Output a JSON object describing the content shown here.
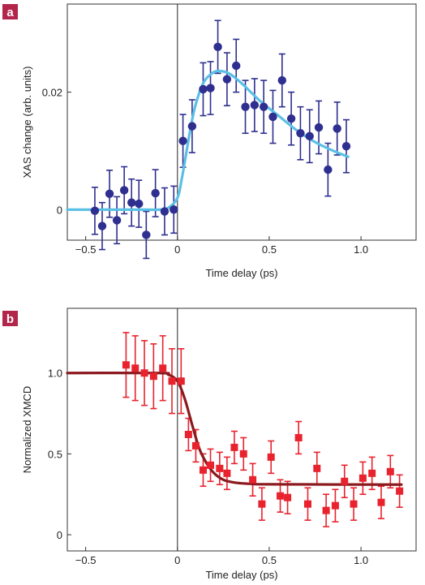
{
  "chart_data": [
    {
      "panel_label": "a",
      "type": "scatter",
      "xlabel": "Time delay (ps)",
      "ylabel": "XAS change (arb. units)",
      "xlim": [
        -0.6,
        1.3
      ],
      "ylim": [
        -0.0052,
        0.035
      ],
      "xticks": [
        -0.5,
        0,
        0.5,
        1.0
      ],
      "xtick_labels": [
        "−0.5",
        "0",
        "0.5",
        "1.0"
      ],
      "yticks": [
        0,
        0.02
      ],
      "ytick_labels": [
        "0",
        "0.02"
      ],
      "colors": {
        "points": "#2e2f8f",
        "fit": "#5bc0e6",
        "panel_badge": "#b3254a"
      },
      "series": [
        {
          "kind": "points",
          "points": [
            {
              "x": -0.45,
              "y": -0.0002,
              "err": 0.004
            },
            {
              "x": -0.41,
              "y": -0.0028,
              "err": 0.004
            },
            {
              "x": -0.37,
              "y": 0.0027,
              "err": 0.004
            },
            {
              "x": -0.33,
              "y": -0.0018,
              "err": 0.004
            },
            {
              "x": -0.29,
              "y": 0.0033,
              "err": 0.004
            },
            {
              "x": -0.25,
              "y": 0.0012,
              "err": 0.004
            },
            {
              "x": -0.21,
              "y": 0.001,
              "err": 0.004
            },
            {
              "x": -0.17,
              "y": -0.0043,
              "err": 0.004
            },
            {
              "x": -0.12,
              "y": 0.0028,
              "err": 0.004
            },
            {
              "x": -0.07,
              "y": -0.0003,
              "err": 0.004
            },
            {
              "x": -0.02,
              "y": 0.0,
              "err": 0.004
            },
            {
              "x": 0.03,
              "y": 0.0117,
              "err": 0.0045
            },
            {
              "x": 0.08,
              "y": 0.0142,
              "err": 0.0045
            },
            {
              "x": 0.14,
              "y": 0.0205,
              "err": 0.0045
            },
            {
              "x": 0.18,
              "y": 0.0207,
              "err": 0.0045
            },
            {
              "x": 0.22,
              "y": 0.0277,
              "err": 0.0045
            },
            {
              "x": 0.27,
              "y": 0.0222,
              "err": 0.0045
            },
            {
              "x": 0.32,
              "y": 0.0245,
              "err": 0.0045
            },
            {
              "x": 0.37,
              "y": 0.0175,
              "err": 0.0045
            },
            {
              "x": 0.42,
              "y": 0.0178,
              "err": 0.0045
            },
            {
              "x": 0.47,
              "y": 0.0175,
              "err": 0.0045
            },
            {
              "x": 0.52,
              "y": 0.0158,
              "err": 0.0045
            },
            {
              "x": 0.57,
              "y": 0.022,
              "err": 0.0045
            },
            {
              "x": 0.62,
              "y": 0.0155,
              "err": 0.0045
            },
            {
              "x": 0.67,
              "y": 0.013,
              "err": 0.0045
            },
            {
              "x": 0.72,
              "y": 0.0125,
              "err": 0.0045
            },
            {
              "x": 0.77,
              "y": 0.014,
              "err": 0.0045
            },
            {
              "x": 0.82,
              "y": 0.0068,
              "err": 0.0045
            },
            {
              "x": 0.87,
              "y": 0.0138,
              "err": 0.0045
            },
            {
              "x": 0.92,
              "y": 0.0108,
              "err": 0.0045
            }
          ]
        },
        {
          "kind": "fit",
          "x": [
            -0.6,
            -0.2,
            -0.1,
            -0.05,
            0.0,
            0.025,
            0.05,
            0.075,
            0.1,
            0.14,
            0.18,
            0.22,
            0.28,
            0.35,
            0.45,
            0.55,
            0.65,
            0.75,
            0.85,
            0.93
          ],
          "y": [
            0.0,
            0.0,
            0.0,
            0.0003,
            0.002,
            0.0055,
            0.01,
            0.0145,
            0.018,
            0.0215,
            0.023,
            0.0236,
            0.0232,
            0.0215,
            0.0185,
            0.016,
            0.0135,
            0.0115,
            0.01,
            0.009
          ]
        }
      ]
    },
    {
      "panel_label": "b",
      "type": "scatter",
      "xlabel": "Time delay (ps)",
      "ylabel": "Normalized XMCD",
      "xlim": [
        -0.6,
        1.3
      ],
      "ylim": [
        -0.1,
        1.4
      ],
      "xticks": [
        -0.5,
        0,
        0.5,
        1.0
      ],
      "xtick_labels": [
        "−0.5",
        "0",
        "0.5",
        "1.0"
      ],
      "yticks": [
        0,
        0.5,
        1.0
      ],
      "ytick_labels": [
        "0",
        "0.5",
        "1.0"
      ],
      "colors": {
        "points": "#e8232e",
        "fit": "#8b1a1f",
        "panel_badge": "#b3254a"
      },
      "series": [
        {
          "kind": "points",
          "points": [
            {
              "x": -0.28,
              "y": 1.05,
              "err": 0.2
            },
            {
              "x": -0.23,
              "y": 1.03,
              "err": 0.2
            },
            {
              "x": -0.18,
              "y": 1.0,
              "err": 0.2
            },
            {
              "x": -0.13,
              "y": 0.98,
              "err": 0.2
            },
            {
              "x": -0.08,
              "y": 1.03,
              "err": 0.2
            },
            {
              "x": -0.03,
              "y": 0.95,
              "err": 0.2
            },
            {
              "x": 0.02,
              "y": 0.95,
              "err": 0.2
            },
            {
              "x": 0.06,
              "y": 0.62,
              "err": 0.1
            },
            {
              "x": 0.1,
              "y": 0.55,
              "err": 0.1
            },
            {
              "x": 0.14,
              "y": 0.4,
              "err": 0.1
            },
            {
              "x": 0.18,
              "y": 0.43,
              "err": 0.1
            },
            {
              "x": 0.23,
              "y": 0.41,
              "err": 0.1
            },
            {
              "x": 0.27,
              "y": 0.38,
              "err": 0.1
            },
            {
              "x": 0.31,
              "y": 0.54,
              "err": 0.1
            },
            {
              "x": 0.36,
              "y": 0.5,
              "err": 0.1
            },
            {
              "x": 0.41,
              "y": 0.34,
              "err": 0.1
            },
            {
              "x": 0.46,
              "y": 0.19,
              "err": 0.1
            },
            {
              "x": 0.51,
              "y": 0.48,
              "err": 0.1
            },
            {
              "x": 0.56,
              "y": 0.24,
              "err": 0.1
            },
            {
              "x": 0.6,
              "y": 0.23,
              "err": 0.1
            },
            {
              "x": 0.66,
              "y": 0.6,
              "err": 0.1
            },
            {
              "x": 0.71,
              "y": 0.19,
              "err": 0.1
            },
            {
              "x": 0.76,
              "y": 0.41,
              "err": 0.1
            },
            {
              "x": 0.81,
              "y": 0.15,
              "err": 0.1
            },
            {
              "x": 0.86,
              "y": 0.18,
              "err": 0.1
            },
            {
              "x": 0.91,
              "y": 0.33,
              "err": 0.1
            },
            {
              "x": 0.96,
              "y": 0.19,
              "err": 0.1
            },
            {
              "x": 1.01,
              "y": 0.35,
              "err": 0.1
            },
            {
              "x": 1.06,
              "y": 0.38,
              "err": 0.1
            },
            {
              "x": 1.11,
              "y": 0.2,
              "err": 0.1
            },
            {
              "x": 1.16,
              "y": 0.39,
              "err": 0.1
            },
            {
              "x": 1.21,
              "y": 0.27,
              "err": 0.1
            }
          ]
        },
        {
          "kind": "fit",
          "x": [
            -0.6,
            -0.1,
            -0.05,
            0.0,
            0.04,
            0.08,
            0.12,
            0.16,
            0.2,
            0.25,
            0.3,
            0.35,
            0.4,
            0.5,
            1.22
          ],
          "y": [
            1.0,
            1.0,
            0.99,
            0.95,
            0.84,
            0.68,
            0.53,
            0.44,
            0.38,
            0.34,
            0.325,
            0.318,
            0.315,
            0.312,
            0.31
          ]
        }
      ]
    }
  ]
}
